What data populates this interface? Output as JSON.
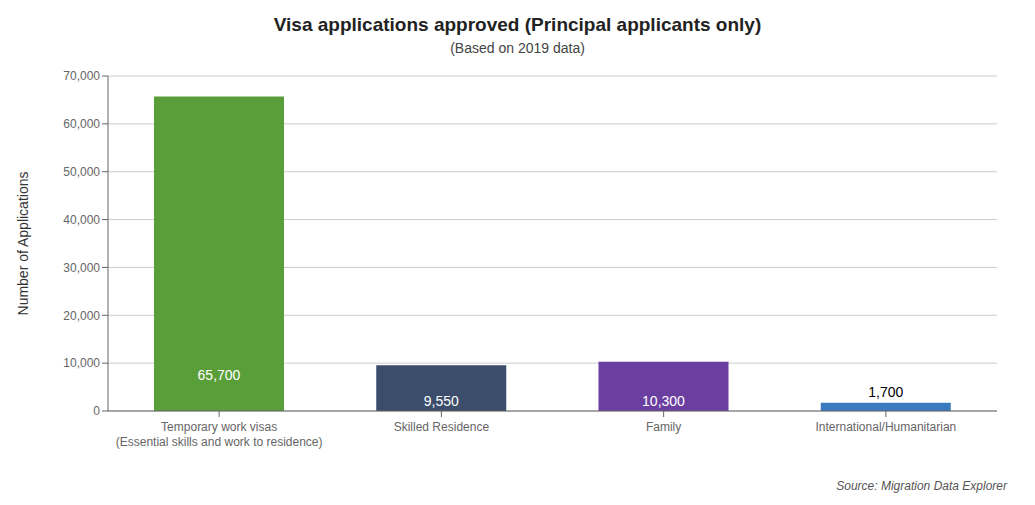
{
  "chart_data": {
    "type": "bar",
    "title": "Visa applications approved (Principal applicants only)",
    "subtitle": "(Based on 2019 data)",
    "ylabel": "Number of Applications",
    "annotations": [
      "Source: Migration Data Explorer"
    ],
    "categories": [
      "Temporary work visas\n(Essential skills and work to residence)",
      "Skilled Residence",
      "Family",
      "International/Humanitarian"
    ],
    "values": [
      65700,
      9550,
      10300,
      1700
    ],
    "value_labels": [
      "65,700",
      "9,550",
      "10,300",
      "1,700"
    ],
    "data_labels": true,
    "colors": [
      "#5a9e3a",
      "#3b4d6b",
      "#6b3fa0",
      "#3a7bbf"
    ],
    "ylim": [
      0,
      70000
    ],
    "yticks": [
      0,
      {
        "value": 10000,
        "label": "10,000"
      },
      {
        "value": 20000,
        "label": "20,000"
      },
      {
        "value": 30000,
        "label": "30,000"
      },
      {
        "value": 40000,
        "label": "40,000"
      },
      {
        "value": 50000,
        "label": "50,000"
      },
      {
        "value": 60000,
        "label": "60,000"
      },
      {
        "value": 70000,
        "label": "70,000"
      }
    ],
    "grid": true
  }
}
